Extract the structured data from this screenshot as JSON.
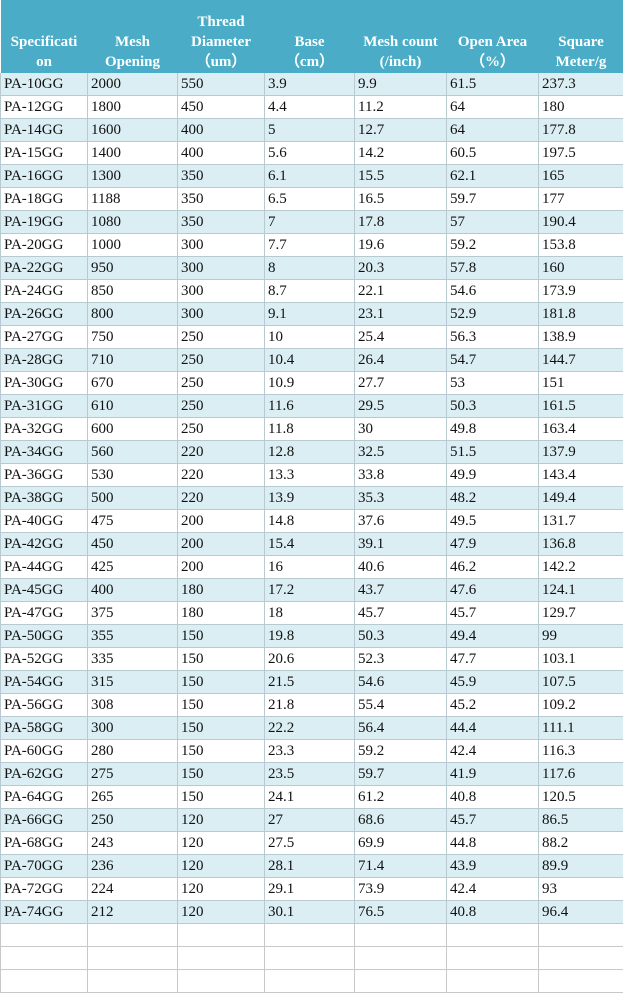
{
  "table": {
    "headers": [
      "Specificati\non",
      "Mesh\nOpening",
      "Thread\nDiameter\n（um）",
      "Base\n（cm）",
      "Mesh count\n(/inch)",
      "Open Area\n（%）",
      "Square\nMeter/g"
    ],
    "rows": [
      [
        "PA-10GG",
        "2000",
        "550",
        "3.9",
        "9.9",
        "61.5",
        "237.3"
      ],
      [
        "PA-12GG",
        "1800",
        "450",
        "4.4",
        "11.2",
        "64",
        "180"
      ],
      [
        "PA-14GG",
        "1600",
        "400",
        "5",
        "12.7",
        "64",
        "177.8"
      ],
      [
        "PA-15GG",
        "1400",
        "400",
        "5.6",
        "14.2",
        "60.5",
        "197.5"
      ],
      [
        "PA-16GG",
        "1300",
        "350",
        "6.1",
        "15.5",
        "62.1",
        "165"
      ],
      [
        "PA-18GG",
        "1188",
        "350",
        "6.5",
        "16.5",
        "59.7",
        "177"
      ],
      [
        "PA-19GG",
        "1080",
        "350",
        "7",
        "17.8",
        "57",
        "190.4"
      ],
      [
        "PA-20GG",
        "1000",
        "300",
        "7.7",
        "19.6",
        "59.2",
        "153.8"
      ],
      [
        "PA-22GG",
        "950",
        "300",
        "8",
        "20.3",
        "57.8",
        "160"
      ],
      [
        "PA-24GG",
        "850",
        "300",
        "8.7",
        "22.1",
        "54.6",
        "173.9"
      ],
      [
        "PA-26GG",
        "800",
        "300",
        "9.1",
        "23.1",
        "52.9",
        "181.8"
      ],
      [
        "PA-27GG",
        "750",
        "250",
        "10",
        "25.4",
        "56.3",
        "138.9"
      ],
      [
        "PA-28GG",
        "710",
        "250",
        "10.4",
        "26.4",
        "54.7",
        "144.7"
      ],
      [
        "PA-30GG",
        "670",
        "250",
        "10.9",
        "27.7",
        "53",
        "151"
      ],
      [
        "PA-31GG",
        "610",
        "250",
        "11.6",
        "29.5",
        "50.3",
        "161.5"
      ],
      [
        "PA-32GG",
        "600",
        "250",
        "11.8",
        "30",
        "49.8",
        "163.4"
      ],
      [
        "PA-34GG",
        "560",
        "220",
        "12.8",
        "32.5",
        "51.5",
        "137.9"
      ],
      [
        "PA-36GG",
        "530",
        "220",
        "13.3",
        "33.8",
        "49.9",
        "143.4"
      ],
      [
        "PA-38GG",
        "500",
        "220",
        "13.9",
        "35.3",
        "48.2",
        "149.4"
      ],
      [
        "PA-40GG",
        "475",
        "200",
        "14.8",
        "37.6",
        "49.5",
        "131.7"
      ],
      [
        "PA-42GG",
        "450",
        "200",
        "15.4",
        "39.1",
        "47.9",
        "136.8"
      ],
      [
        "PA-44GG",
        "425",
        "200",
        "16",
        "40.6",
        "46.2",
        "142.2"
      ],
      [
        "PA-45GG",
        "400",
        "180",
        "17.2",
        "43.7",
        "47.6",
        "124.1"
      ],
      [
        "PA-47GG",
        "375",
        "180",
        "18",
        "45.7",
        "45.7",
        "129.7"
      ],
      [
        "PA-50GG",
        "355",
        "150",
        "19.8",
        "50.3",
        "49.4",
        "99"
      ],
      [
        "PA-52GG",
        "335",
        "150",
        "20.6",
        "52.3",
        "47.7",
        "103.1"
      ],
      [
        "PA-54GG",
        "315",
        "150",
        "21.5",
        "54.6",
        "45.9",
        "107.5"
      ],
      [
        "PA-56GG",
        "308",
        "150",
        "21.8",
        "55.4",
        "45.2",
        "109.2"
      ],
      [
        "PA-58GG",
        "300",
        "150",
        "22.2",
        "56.4",
        "44.4",
        "111.1"
      ],
      [
        "PA-60GG",
        "280",
        "150",
        "23.3",
        "59.2",
        "42.4",
        "116.3"
      ],
      [
        "PA-62GG",
        "275",
        "150",
        "23.5",
        "59.7",
        "41.9",
        "117.6"
      ],
      [
        "PA-64GG",
        "265",
        "150",
        "24.1",
        "61.2",
        "40.8",
        "120.5"
      ],
      [
        "PA-66GG",
        "250",
        "120",
        "27",
        "68.6",
        "45.7",
        "86.5"
      ],
      [
        "PA-68GG",
        "243",
        "120",
        "27.5",
        "69.9",
        "44.8",
        "88.2"
      ],
      [
        "PA-70GG",
        "236",
        "120",
        "28.1",
        "71.4",
        "43.9",
        "89.9"
      ],
      [
        "PA-72GG",
        "224",
        "120",
        "29.1",
        "73.9",
        "42.4",
        "93"
      ],
      [
        "PA-74GG",
        "212",
        "120",
        "30.1",
        "76.5",
        "40.8",
        "96.4"
      ]
    ]
  },
  "colors": {
    "header": "#4aacc6",
    "alt_row": "#daeef3"
  }
}
